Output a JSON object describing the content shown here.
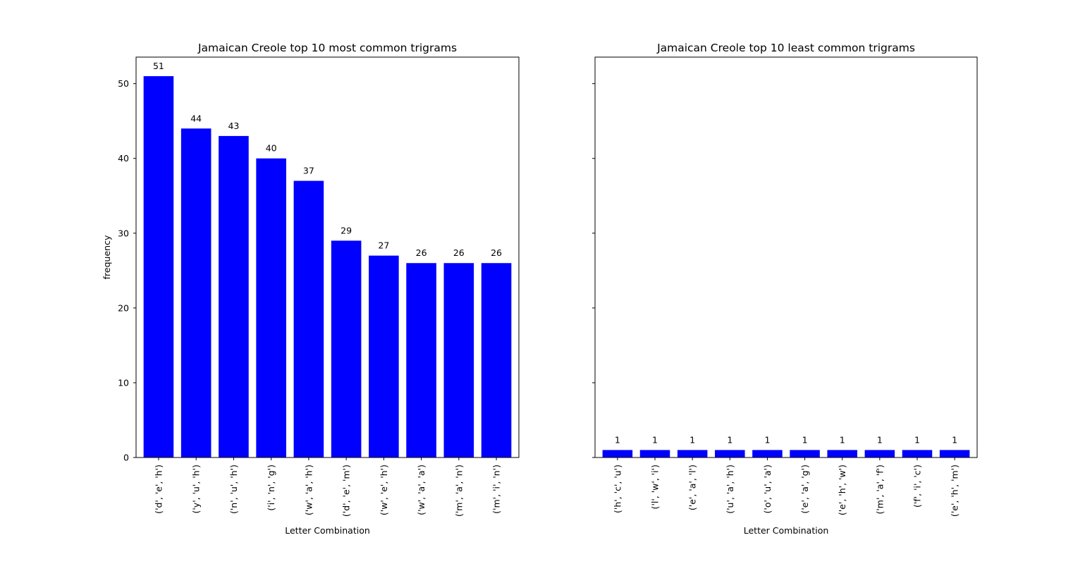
{
  "figure": {
    "bar_color": "#0000ff"
  },
  "chart_data": [
    {
      "type": "bar",
      "title": "Jamaican Creole top 10 most common trigrams",
      "xlabel": "Letter Combination",
      "ylabel": "frequency",
      "ylim": [
        0,
        53.55
      ],
      "yticks": [
        0,
        10,
        20,
        30,
        40,
        50
      ],
      "show_ytick_labels": true,
      "grid": false,
      "categories": [
        "('d', 'e', 'h')",
        "('y', 'u', 'h')",
        "('n', 'u', 'h')",
        "('i', 'n', 'g')",
        "('w', 'a', 'h')",
        "('d', 'e', 'm')",
        "('w', 'e', 'h')",
        "('w', 'a', 'a')",
        "('m', 'a', 'n')",
        "('m', 'i', 'n')"
      ],
      "values": [
        51,
        44,
        43,
        40,
        37,
        29,
        27,
        26,
        26,
        26
      ]
    },
    {
      "type": "bar",
      "title": "Jamaican Creole top 10 least common trigrams",
      "xlabel": "Letter Combination",
      "ylabel": "",
      "ylim": [
        0,
        53.55
      ],
      "yticks": [
        0,
        10,
        20,
        30,
        40,
        50
      ],
      "show_ytick_labels": false,
      "grid": false,
      "categories": [
        "('h', 'c', 'u')",
        "('l', 'w', 'i')",
        "('e', 'a', 'l')",
        "('u', 'a', 'h')",
        "('o', 'u', 'a')",
        "('e', 'a', 'g')",
        "('e', 'h', 'w')",
        "('m', 'a', 'f')",
        "('f', 'i', 'c')",
        "('e', 'h', 'm')"
      ],
      "values": [
        1,
        1,
        1,
        1,
        1,
        1,
        1,
        1,
        1,
        1
      ]
    }
  ]
}
